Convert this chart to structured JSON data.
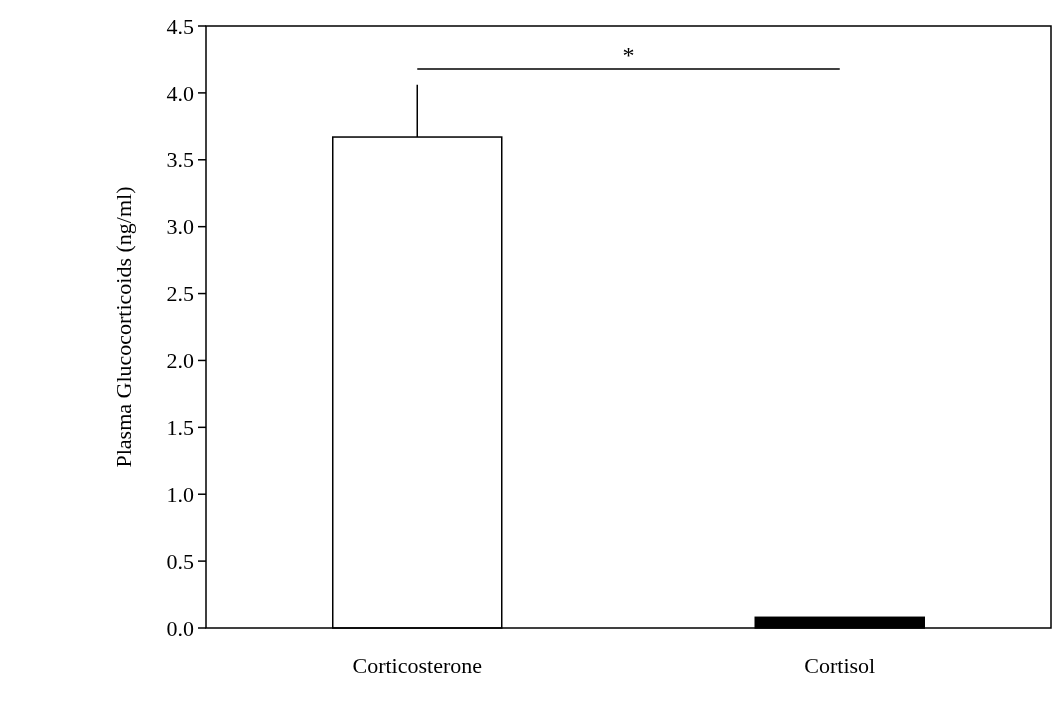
{
  "chart_data": {
    "type": "bar",
    "ylabel": "Plasma Glucocorticoids (ng/ml)",
    "categories": [
      "Corticosterone",
      "Cortisol"
    ],
    "values": [
      3.67,
      0.08
    ],
    "colors": [
      "#ffffff",
      "#000000"
    ],
    "errors": [
      [
        3.67,
        4.06
      ],
      null
    ],
    "ylim": [
      0,
      4.5
    ],
    "yticks": [
      {
        "value": 0,
        "label": "0.0"
      },
      {
        "value": 0.5,
        "label": "0.5"
      },
      {
        "value": 1,
        "label": "1.0"
      },
      {
        "value": 1.5,
        "label": "1.5"
      },
      {
        "value": 2,
        "label": "2.0"
      },
      {
        "value": 2.5,
        "label": "2.5"
      },
      {
        "value": 3,
        "label": "3.0"
      },
      {
        "value": 3.5,
        "label": "3.5"
      },
      {
        "value": 4,
        "label": "4.0"
      },
      {
        "value": 4.5,
        "label": "4.5"
      }
    ],
    "annotations": [
      "*"
    ],
    "grid": false
  }
}
